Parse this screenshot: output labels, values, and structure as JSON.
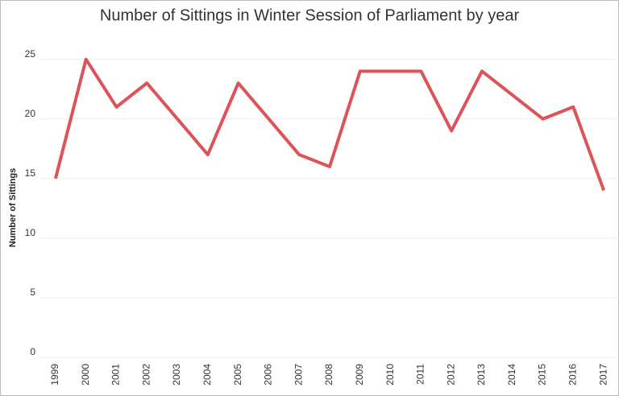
{
  "chart_data": {
    "type": "line",
    "title": "Number of Sittings in Winter Session of Parliament by year",
    "y_label": "Number of Sittings",
    "categories": [
      "1999",
      "2000",
      "2001",
      "2002",
      "2003",
      "2004",
      "2005",
      "2006",
      "2007",
      "2008",
      "2009",
      "2010",
      "2011",
      "2012",
      "2013",
      "2014",
      "2015",
      "2016",
      "2017"
    ],
    "values": [
      15,
      25,
      21,
      23,
      20,
      17,
      23,
      20,
      17,
      16,
      24,
      24,
      24,
      19,
      24,
      22,
      20,
      21,
      14
    ],
    "color": "#dc5358",
    "ylim": [
      0,
      27
    ],
    "yticks": [
      0,
      5,
      10,
      15,
      20,
      25
    ],
    "grid": true
  }
}
